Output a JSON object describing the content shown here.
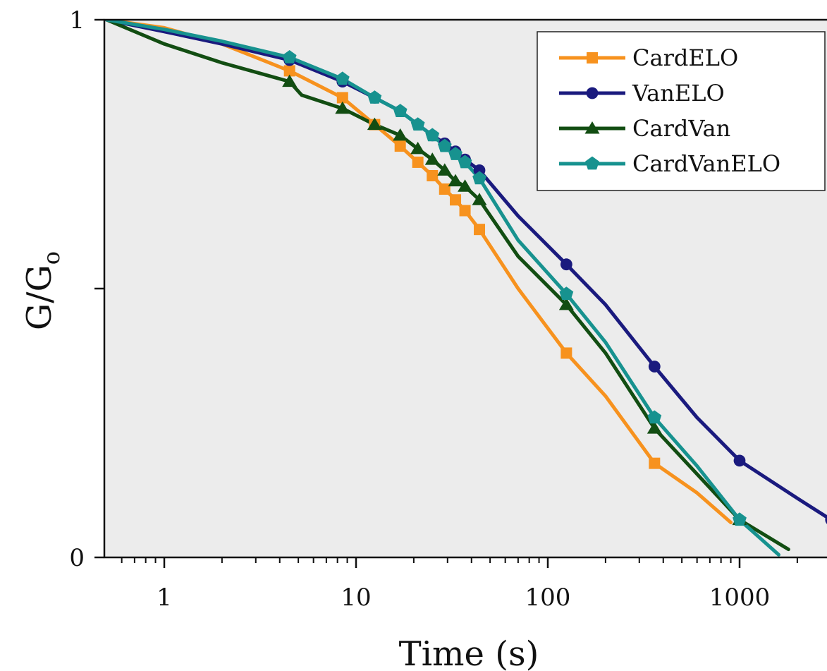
{
  "chart_data": {
    "type": "line",
    "title": "",
    "xlabel": "Time (s)",
    "ylabel": "G/G",
    "ylabel_subscript": "o",
    "x_scale": "log",
    "xlim": [
      0.5,
      3000
    ],
    "ylim": [
      0,
      1
    ],
    "x_ticks": [
      {
        "value": 1,
        "label": "1"
      },
      {
        "value": 10,
        "label": "10"
      },
      {
        "value": 100,
        "label": "100"
      },
      {
        "value": 1000,
        "label": "1000"
      }
    ],
    "y_ticks": [
      {
        "value": 0,
        "label": "0"
      },
      {
        "value": 0.5,
        "label": ""
      },
      {
        "value": 1,
        "label": "1"
      }
    ],
    "grid": false,
    "background_color": "#ececec",
    "legend_position": "top-right",
    "series": [
      {
        "name": "CardELO",
        "color": "#f7921e",
        "marker": "square",
        "points": [
          [
            0.5,
            1.0
          ],
          [
            1,
            0.985
          ],
          [
            2,
            0.955
          ],
          [
            4.5,
            0.905
          ],
          [
            8.5,
            0.855
          ],
          [
            12.5,
            0.805
          ],
          [
            17,
            0.765
          ],
          [
            21,
            0.735
          ],
          [
            25,
            0.71
          ],
          [
            29,
            0.685
          ],
          [
            33,
            0.665
          ],
          [
            37,
            0.645
          ],
          [
            44,
            0.61
          ],
          [
            70,
            0.5
          ],
          [
            125,
            0.38
          ],
          [
            200,
            0.3
          ],
          [
            360,
            0.175
          ],
          [
            600,
            0.12
          ],
          [
            900,
            0.065
          ]
        ],
        "markers_at": [
          [
            4.5,
            0.905
          ],
          [
            8.5,
            0.855
          ],
          [
            12.5,
            0.805
          ],
          [
            17,
            0.765
          ],
          [
            21,
            0.735
          ],
          [
            25,
            0.71
          ],
          [
            29,
            0.685
          ],
          [
            33,
            0.665
          ],
          [
            37,
            0.645
          ],
          [
            44,
            0.61
          ],
          [
            125,
            0.38
          ],
          [
            360,
            0.175
          ]
        ]
      },
      {
        "name": "VanELO",
        "color": "#1a1a7e",
        "marker": "circle",
        "points": [
          [
            0.5,
            1.0
          ],
          [
            1,
            0.978
          ],
          [
            2,
            0.955
          ],
          [
            4.5,
            0.925
          ],
          [
            8.5,
            0.885
          ],
          [
            12.5,
            0.855
          ],
          [
            17,
            0.83
          ],
          [
            21,
            0.805
          ],
          [
            25,
            0.785
          ],
          [
            29,
            0.77
          ],
          [
            33,
            0.755
          ],
          [
            37,
            0.74
          ],
          [
            44,
            0.72
          ],
          [
            70,
            0.635
          ],
          [
            125,
            0.545
          ],
          [
            200,
            0.47
          ],
          [
            360,
            0.355
          ],
          [
            600,
            0.26
          ],
          [
            1000,
            0.18
          ],
          [
            2000,
            0.11
          ],
          [
            3000,
            0.07
          ]
        ],
        "markers_at": [
          [
            4.5,
            0.925
          ],
          [
            8.5,
            0.885
          ],
          [
            12.5,
            0.855
          ],
          [
            17,
            0.83
          ],
          [
            21,
            0.805
          ],
          [
            25,
            0.785
          ],
          [
            29,
            0.77
          ],
          [
            33,
            0.755
          ],
          [
            37,
            0.74
          ],
          [
            44,
            0.72
          ],
          [
            125,
            0.545
          ],
          [
            360,
            0.355
          ],
          [
            1000,
            0.18
          ],
          [
            3000,
            0.07
          ]
        ]
      },
      {
        "name": "CardVan",
        "color": "#124d12",
        "marker": "triangle",
        "points": [
          [
            0.5,
            1.0
          ],
          [
            1,
            0.955
          ],
          [
            2,
            0.92
          ],
          [
            4.5,
            0.885
          ],
          [
            5.2,
            0.86
          ],
          [
            8.5,
            0.835
          ],
          [
            12.5,
            0.805
          ],
          [
            17,
            0.785
          ],
          [
            21,
            0.76
          ],
          [
            25,
            0.74
          ],
          [
            29,
            0.72
          ],
          [
            33,
            0.7
          ],
          [
            37,
            0.69
          ],
          [
            44,
            0.665
          ],
          [
            70,
            0.56
          ],
          [
            125,
            0.47
          ],
          [
            200,
            0.38
          ],
          [
            360,
            0.24
          ],
          [
            600,
            0.155
          ],
          [
            1000,
            0.07
          ],
          [
            1800,
            0.015
          ]
        ],
        "markers_at": [
          [
            4.5,
            0.885
          ],
          [
            8.5,
            0.835
          ],
          [
            12.5,
            0.805
          ],
          [
            17,
            0.785
          ],
          [
            21,
            0.76
          ],
          [
            25,
            0.74
          ],
          [
            29,
            0.72
          ],
          [
            33,
            0.7
          ],
          [
            37,
            0.69
          ],
          [
            44,
            0.665
          ],
          [
            125,
            0.47
          ],
          [
            360,
            0.24
          ],
          [
            1000,
            0.07
          ]
        ]
      },
      {
        "name": "CardVanELO",
        "color": "#17928f",
        "marker": "pentagon",
        "points": [
          [
            0.5,
            1.0
          ],
          [
            1,
            0.982
          ],
          [
            2,
            0.96
          ],
          [
            4.5,
            0.93
          ],
          [
            8.5,
            0.89
          ],
          [
            12.5,
            0.855
          ],
          [
            17,
            0.83
          ],
          [
            21,
            0.805
          ],
          [
            25,
            0.785
          ],
          [
            29,
            0.765
          ],
          [
            33,
            0.75
          ],
          [
            37,
            0.735
          ],
          [
            44,
            0.705
          ],
          [
            70,
            0.59
          ],
          [
            125,
            0.49
          ],
          [
            200,
            0.4
          ],
          [
            360,
            0.26
          ],
          [
            600,
            0.17
          ],
          [
            1000,
            0.07
          ],
          [
            1600,
            0.005
          ]
        ],
        "markers_at": [
          [
            4.5,
            0.93
          ],
          [
            8.5,
            0.89
          ],
          [
            12.5,
            0.855
          ],
          [
            17,
            0.83
          ],
          [
            21,
            0.805
          ],
          [
            25,
            0.785
          ],
          [
            29,
            0.765
          ],
          [
            33,
            0.75
          ],
          [
            37,
            0.735
          ],
          [
            44,
            0.705
          ],
          [
            125,
            0.49
          ],
          [
            360,
            0.26
          ],
          [
            1000,
            0.07
          ]
        ]
      }
    ]
  }
}
